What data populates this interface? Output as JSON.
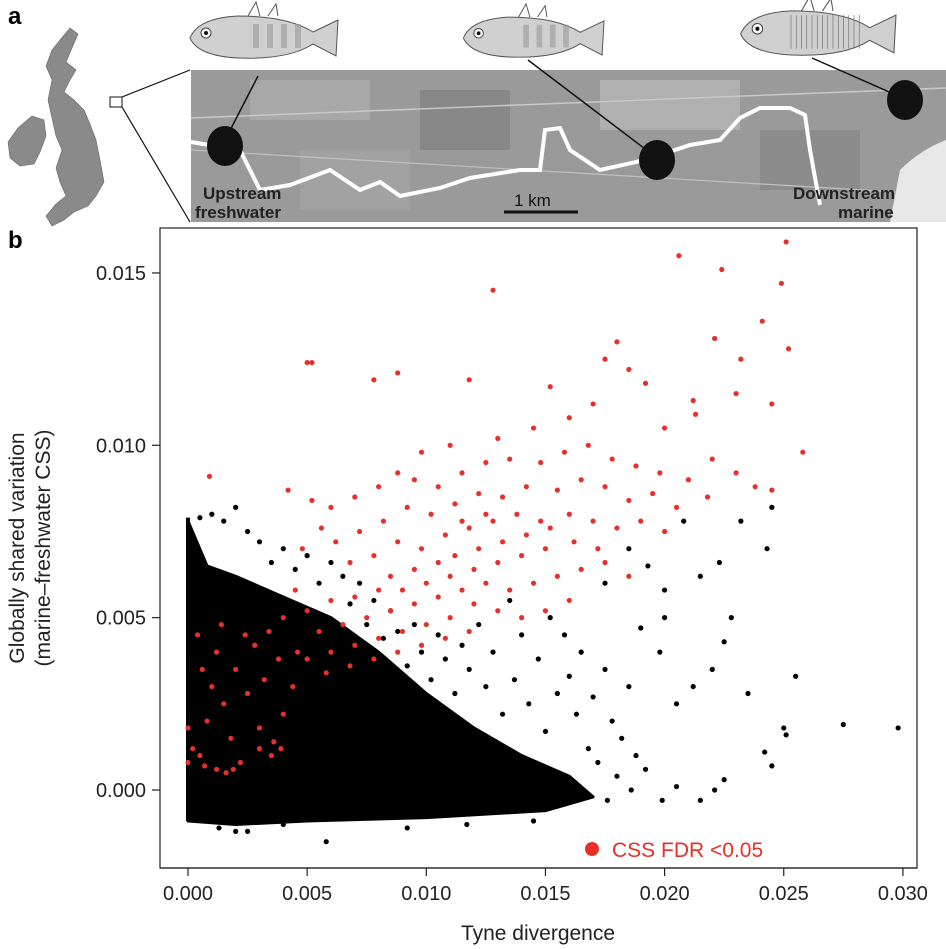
{
  "panel_a": {
    "letter": "a",
    "upstream_label_1": "Upstream",
    "upstream_label_2": "freshwater",
    "downstream_label_1": "Downstream",
    "downstream_label_2": "marine",
    "scale_bar_label": "1 km"
  },
  "panel_b": {
    "letter": "b"
  },
  "chart_data": {
    "type": "scatter",
    "title": "",
    "xlabel": "Tyne divergence",
    "ylabel_line1": "Globally shared variation",
    "ylabel_line2": "(marine–freshwater CSS)",
    "xlim": [
      -0.0012,
      0.0306
    ],
    "ylim": [
      -0.0023,
      0.0163
    ],
    "xticks": [
      "0.000",
      "0.005",
      "0.010",
      "0.015",
      "0.020",
      "0.025",
      "0.030"
    ],
    "xtick_values": [
      0,
      0.005,
      0.01,
      0.015,
      0.02,
      0.025,
      0.03
    ],
    "yticks": [
      "0.000",
      "0.005",
      "0.010",
      "0.015"
    ],
    "ytick_values": [
      0,
      0.005,
      0.01,
      0.015
    ],
    "grid": false,
    "legend": {
      "label": "CSS FDR <0.05",
      "color": "#e8302a",
      "placement": "bottom-right"
    },
    "colors": {
      "significant": "#e8302a",
      "other": "#000000"
    },
    "dense_region_other": [
      [
        0,
        -0.0009
      ],
      [
        0,
        0.0078
      ],
      [
        0.0008,
        0.0065
      ],
      [
        0.002,
        0.0062
      ],
      [
        0.004,
        0.0056
      ],
      [
        0.006,
        0.005
      ],
      [
        0.008,
        0.004
      ],
      [
        0.01,
        0.0028
      ],
      [
        0.012,
        0.0018
      ],
      [
        0.014,
        0.001
      ],
      [
        0.016,
        0.0004
      ],
      [
        0.017,
        -0.0002
      ],
      [
        0.015,
        -0.0006
      ],
      [
        0.01,
        -0.0008
      ],
      [
        0.005,
        -0.0009
      ],
      [
        0.002,
        -0.001
      ]
    ],
    "series": [
      {
        "name": "other",
        "points": [
          [
            0.0298,
            0.0018
          ],
          [
            0.0275,
            0.0019
          ],
          [
            0.0255,
            0.0033
          ],
          [
            0.025,
            0.0018
          ],
          [
            0.0251,
            0.0016
          ],
          [
            0.0242,
            0.0011
          ],
          [
            0.0245,
            0.0007
          ],
          [
            0.0243,
            0.007
          ],
          [
            0.0235,
            0.0028
          ],
          [
            0.0225,
            0.0043
          ],
          [
            0.0228,
            0.005
          ],
          [
            0.022,
            0.0035
          ],
          [
            0.0215,
            0.0062
          ],
          [
            0.0208,
            0.0078
          ],
          [
            0.02,
            0.0058
          ],
          [
            0.0212,
            0.003
          ],
          [
            0.0205,
            0.0025
          ],
          [
            0.0198,
            0.004
          ],
          [
            0.019,
            0.0047
          ],
          [
            0.0225,
            0.0003
          ],
          [
            0.0221,
            0.0
          ],
          [
            0.0215,
            -0.0003
          ],
          [
            0.0205,
            0.0001
          ],
          [
            0.0199,
            -0.0003
          ],
          [
            0.0192,
            0.0006
          ],
          [
            0.0188,
            0.001
          ],
          [
            0.0182,
            0.0015
          ],
          [
            0.0178,
            0.002
          ],
          [
            0.0185,
            0.003
          ],
          [
            0.0175,
            0.0035
          ],
          [
            0.017,
            0.0027
          ],
          [
            0.0165,
            0.004
          ],
          [
            0.016,
            0.0033
          ],
          [
            0.0168,
            0.0012
          ],
          [
            0.0172,
            0.0008
          ],
          [
            0.018,
            0.0004
          ],
          [
            0.0186,
            0.0
          ],
          [
            0.0176,
            -0.0003
          ],
          [
            0.0163,
            0.0022
          ],
          [
            0.0158,
            0.0045
          ],
          [
            0.0152,
            0.005
          ],
          [
            0.0155,
            0.0028
          ],
          [
            0.015,
            0.0017
          ],
          [
            0.0147,
            0.0038
          ],
          [
            0.0143,
            0.0025
          ],
          [
            0.014,
            0.0045
          ],
          [
            0.0137,
            0.0032
          ],
          [
            0.0135,
            0.0055
          ],
          [
            0.0132,
            0.0022
          ],
          [
            0.0128,
            0.004
          ],
          [
            0.0125,
            0.003
          ],
          [
            0.0122,
            0.0048
          ],
          [
            0.0118,
            0.0035
          ],
          [
            0.0115,
            0.0042
          ],
          [
            0.0112,
            0.0028
          ],
          [
            0.0108,
            0.0038
          ],
          [
            0.0105,
            0.0045
          ],
          [
            0.0102,
            0.0032
          ],
          [
            0.0098,
            0.004
          ],
          [
            0.0095,
            0.0048
          ],
          [
            0.0092,
            0.0036
          ],
          [
            0.0088,
            0.0046
          ],
          [
            0.0085,
            0.0052
          ],
          [
            0.0082,
            0.0044
          ],
          [
            0.0078,
            0.0055
          ],
          [
            0.0075,
            0.0048
          ],
          [
            0.0072,
            0.006
          ],
          [
            0.0068,
            0.0054
          ],
          [
            0.0065,
            0.0062
          ],
          [
            0.006,
            0.0066
          ],
          [
            0.0055,
            0.006
          ],
          [
            0.005,
            0.0068
          ],
          [
            0.0045,
            0.0064
          ],
          [
            0.004,
            0.007
          ],
          [
            0.0035,
            0.0066
          ],
          [
            0.003,
            0.0072
          ],
          [
            0.0025,
            0.0075
          ],
          [
            0.002,
            0.0082
          ],
          [
            0.0015,
            0.0078
          ],
          [
            0.001,
            0.008
          ],
          [
            0.0005,
            0.0079
          ],
          [
            0.0058,
            -0.0015
          ],
          [
            0.002,
            -0.0012
          ],
          [
            0.0025,
            -0.0012
          ],
          [
            0.0013,
            -0.0011
          ],
          [
            0.004,
            -0.001
          ],
          [
            0.0092,
            -0.0011
          ],
          [
            0.0117,
            -0.001
          ],
          [
            0.0145,
            -0.0009
          ],
          [
            0.0185,
            0.007
          ],
          [
            0.0193,
            0.0065
          ],
          [
            0.02,
            0.005
          ],
          [
            0.0175,
            0.006
          ],
          [
            0.0232,
            0.0078
          ],
          [
            0.0245,
            0.0082
          ],
          [
            0.0223,
            0.0066
          ]
        ]
      },
      {
        "name": "CSS FDR <0.05",
        "points": [
          [
            0.0206,
            0.0155
          ],
          [
            0.0251,
            0.0159
          ],
          [
            0.0224,
            0.0151
          ],
          [
            0.0128,
            0.0145
          ],
          [
            0.0249,
            0.0147
          ],
          [
            0.0252,
            0.0128
          ],
          [
            0.0241,
            0.0136
          ],
          [
            0.0221,
            0.0131
          ],
          [
            0.0232,
            0.0125
          ],
          [
            0.005,
            0.0124
          ],
          [
            0.0052,
            0.0124
          ],
          [
            0.0088,
            0.0121
          ],
          [
            0.0078,
            0.0119
          ],
          [
            0.0118,
            0.0119
          ],
          [
            0.0152,
            0.0117
          ],
          [
            0.018,
            0.013
          ],
          [
            0.0175,
            0.0125
          ],
          [
            0.0185,
            0.0122
          ],
          [
            0.0192,
            0.0118
          ],
          [
            0.0212,
            0.0113
          ],
          [
            0.023,
            0.0115
          ],
          [
            0.0245,
            0.0112
          ],
          [
            0.0258,
            0.0098
          ],
          [
            0.0245,
            0.0087
          ],
          [
            0.0213,
            0.0109
          ],
          [
            0.02,
            0.0105
          ],
          [
            0.017,
            0.0112
          ],
          [
            0.016,
            0.0108
          ],
          [
            0.0145,
            0.0105
          ],
          [
            0.013,
            0.0102
          ],
          [
            0.011,
            0.01
          ],
          [
            0.0098,
            0.0098
          ],
          [
            0.0088,
            0.0092
          ],
          [
            0.0009,
            0.0091
          ],
          [
            0.0042,
            0.0087
          ],
          [
            0.0052,
            0.0084
          ],
          [
            0.006,
            0.0082
          ],
          [
            0.007,
            0.0085
          ],
          [
            0.008,
            0.0088
          ],
          [
            0.0095,
            0.009
          ],
          [
            0.0105,
            0.0088
          ],
          [
            0.0115,
            0.0092
          ],
          [
            0.0125,
            0.0095
          ],
          [
            0.0135,
            0.0096
          ],
          [
            0.0148,
            0.0095
          ],
          [
            0.0158,
            0.0098
          ],
          [
            0.0168,
            0.01
          ],
          [
            0.0178,
            0.0096
          ],
          [
            0.0188,
            0.0094
          ],
          [
            0.0198,
            0.0092
          ],
          [
            0.021,
            0.009
          ],
          [
            0.022,
            0.0096
          ],
          [
            0.023,
            0.0092
          ],
          [
            0.0238,
            0.0088
          ],
          [
            0.0218,
            0.0085
          ],
          [
            0.0205,
            0.0082
          ],
          [
            0.0195,
            0.0086
          ],
          [
            0.0185,
            0.0084
          ],
          [
            0.0175,
            0.0088
          ],
          [
            0.0165,
            0.009
          ],
          [
            0.0155,
            0.0087
          ],
          [
            0.0142,
            0.0088
          ],
          [
            0.0132,
            0.0085
          ],
          [
            0.0122,
            0.0086
          ],
          [
            0.0112,
            0.0083
          ],
          [
            0.0102,
            0.008
          ],
          [
            0.0092,
            0.0082
          ],
          [
            0.0082,
            0.0078
          ],
          [
            0.0072,
            0.0075
          ],
          [
            0.0062,
            0.0072
          ],
          [
            0.0056,
            0.0076
          ],
          [
            0.0048,
            0.007
          ],
          [
            0.0068,
            0.0066
          ],
          [
            0.0078,
            0.0068
          ],
          [
            0.0088,
            0.0072
          ],
          [
            0.0098,
            0.007
          ],
          [
            0.0108,
            0.0074
          ],
          [
            0.0118,
            0.0076
          ],
          [
            0.0128,
            0.0078
          ],
          [
            0.0138,
            0.008
          ],
          [
            0.0148,
            0.0078
          ],
          [
            0.016,
            0.008
          ],
          [
            0.017,
            0.0078
          ],
          [
            0.018,
            0.0076
          ],
          [
            0.019,
            0.0078
          ],
          [
            0.02,
            0.0075
          ],
          [
            0.015,
            0.007
          ],
          [
            0.014,
            0.0068
          ],
          [
            0.013,
            0.0066
          ],
          [
            0.012,
            0.0064
          ],
          [
            0.011,
            0.0062
          ],
          [
            0.01,
            0.006
          ],
          [
            0.009,
            0.0058
          ],
          [
            0.008,
            0.0058
          ],
          [
            0.007,
            0.0056
          ],
          [
            0.006,
            0.0055
          ],
          [
            0.005,
            0.0052
          ],
          [
            0.0045,
            0.0058
          ],
          [
            0.004,
            0.005
          ],
          [
            0.0055,
            0.0046
          ],
          [
            0.0065,
            0.0048
          ],
          [
            0.0075,
            0.005
          ],
          [
            0.0085,
            0.0052
          ],
          [
            0.0095,
            0.0054
          ],
          [
            0.0105,
            0.0056
          ],
          [
            0.0115,
            0.0058
          ],
          [
            0.0125,
            0.006
          ],
          [
            0.0135,
            0.0058
          ],
          [
            0.0145,
            0.006
          ],
          [
            0.0155,
            0.0062
          ],
          [
            0.0165,
            0.0064
          ],
          [
            0.0175,
            0.0066
          ],
          [
            0.0185,
            0.0062
          ],
          [
            0.016,
            0.0055
          ],
          [
            0.015,
            0.0052
          ],
          [
            0.014,
            0.005
          ],
          [
            0.013,
            0.0052
          ],
          [
            0.012,
            0.0054
          ],
          [
            0.011,
            0.005
          ],
          [
            0.01,
            0.0048
          ],
          [
            0.009,
            0.0046
          ],
          [
            0.008,
            0.0044
          ],
          [
            0.007,
            0.0042
          ],
          [
            0.006,
            0.004
          ],
          [
            0.005,
            0.0038
          ],
          [
            0.0058,
            0.0034
          ],
          [
            0.0068,
            0.0036
          ],
          [
            0.0078,
            0.0038
          ],
          [
            0.0088,
            0.004
          ],
          [
            0.0098,
            0.0042
          ],
          [
            0.0108,
            0.0044
          ],
          [
            0.0118,
            0.0046
          ],
          [
            0.0112,
            0.0068
          ],
          [
            0.0122,
            0.007
          ],
          [
            0.0105,
            0.0066
          ],
          [
            0.0095,
            0.0064
          ],
          [
            0.0085,
            0.0062
          ],
          [
            0.0132,
            0.0072
          ],
          [
            0.0142,
            0.0074
          ],
          [
            0.0152,
            0.0076
          ],
          [
            0.0162,
            0.0072
          ],
          [
            0.0172,
            0.007
          ],
          [
            0.0125,
            0.008
          ],
          [
            0.0115,
            0.0078
          ],
          [
            0.0005,
            0.001
          ],
          [
            0.0008,
            0.002
          ],
          [
            0.001,
            0.003
          ],
          [
            0.0012,
            0.004
          ],
          [
            0.0006,
            0.0035
          ],
          [
            0.0015,
            0.0025
          ],
          [
            0.0018,
            0.0015
          ],
          [
            0.002,
            0.0035
          ],
          [
            0.0022,
            0.0008
          ],
          [
            0.0025,
            0.0028
          ],
          [
            0.0028,
            0.0042
          ],
          [
            0.003,
            0.0018
          ],
          [
            0.0032,
            0.0032
          ],
          [
            0.0035,
            0.001
          ],
          [
            0.0038,
            0.0038
          ],
          [
            0.004,
            0.0022
          ],
          [
            0.0007,
            0.0007
          ],
          [
            0.0012,
            0.0006
          ],
          [
            0.0016,
            0.0005
          ],
          [
            0.0019,
            0.0006
          ],
          [
            0.003,
            0.0012
          ],
          [
            0.0036,
            0.0014
          ],
          [
            0.0039,
            0.0012
          ],
          [
            0.0002,
            0.0012
          ],
          [
            0.0,
            0.0008
          ],
          [
            0.0,
            0.0018
          ],
          [
            0.0004,
            0.0045
          ],
          [
            0.0014,
            0.0048
          ],
          [
            0.0024,
            0.0045
          ],
          [
            0.0034,
            0.0046
          ],
          [
            0.0044,
            0.003
          ],
          [
            0.0046,
            0.004
          ]
        ]
      }
    ]
  }
}
